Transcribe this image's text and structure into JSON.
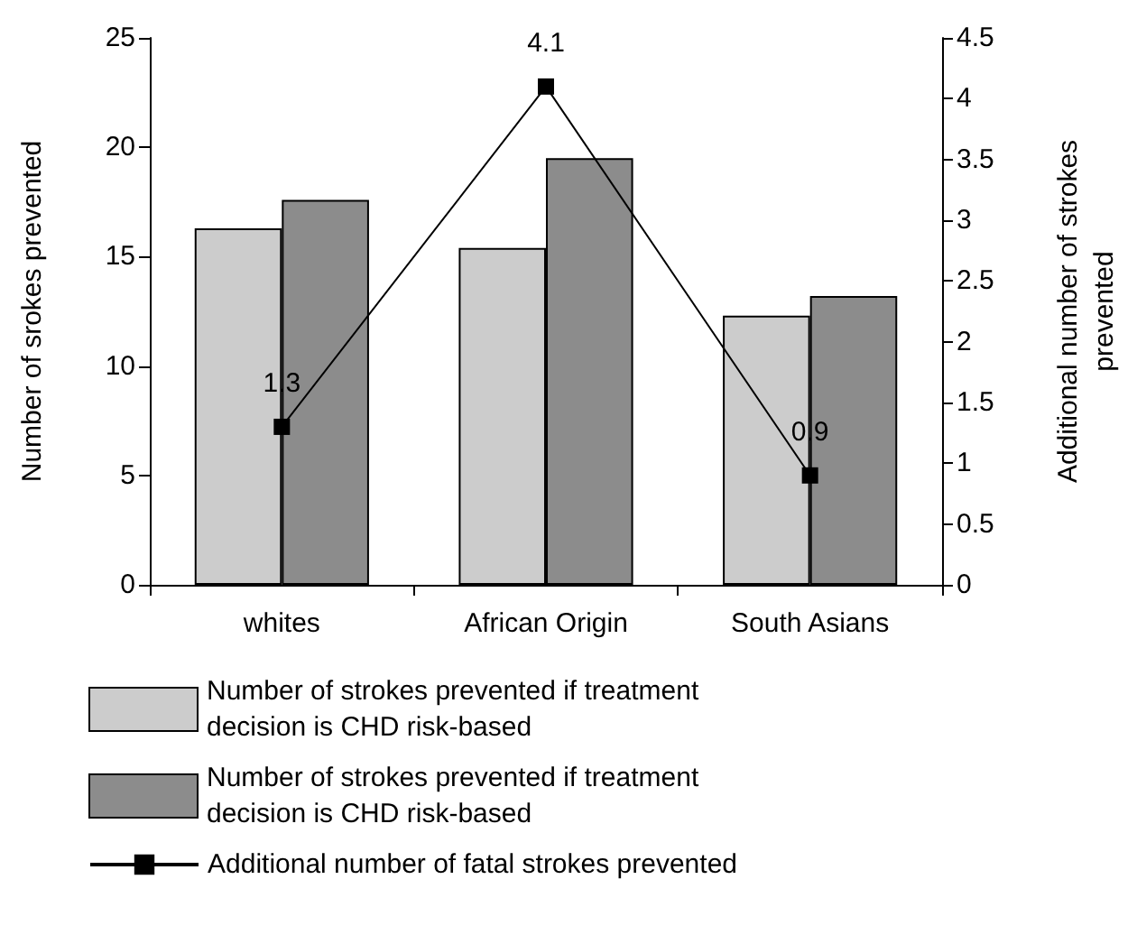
{
  "chart_data": {
    "type": "bar",
    "ylabel": "Number of srokes prevented",
    "y2label": "Additional number of strokes\nprevented",
    "categories": [
      "whites",
      "African Origin",
      "South Asians"
    ],
    "series": [
      {
        "name": "Number of strokes prevented if treatment decision is CHD risk-based",
        "color": "#cccccc",
        "values": [
          16.3,
          15.4,
          12.3
        ]
      },
      {
        "name": "Number of strokes prevented if treatment decision is CHD risk-based",
        "color": "#8c8c8c",
        "values": [
          17.6,
          19.5,
          13.2
        ]
      },
      {
        "name": "Additional number of fatal strokes prevented",
        "type": "line",
        "axis": "y2",
        "color": "#000000",
        "marker": "square",
        "values": [
          1.3,
          4.1,
          0.9
        ],
        "value_labels": [
          "1.3",
          "4.1",
          "0.9"
        ]
      }
    ],
    "ylim": [
      0,
      25
    ],
    "yticks": [
      0,
      5,
      10,
      15,
      20,
      25
    ],
    "y2lim": [
      0,
      4.5
    ],
    "y2ticks": [
      0,
      0.5,
      1,
      1.5,
      2,
      2.5,
      3,
      3.5,
      4,
      4.5
    ],
    "grid": false,
    "legend": "bottom"
  }
}
